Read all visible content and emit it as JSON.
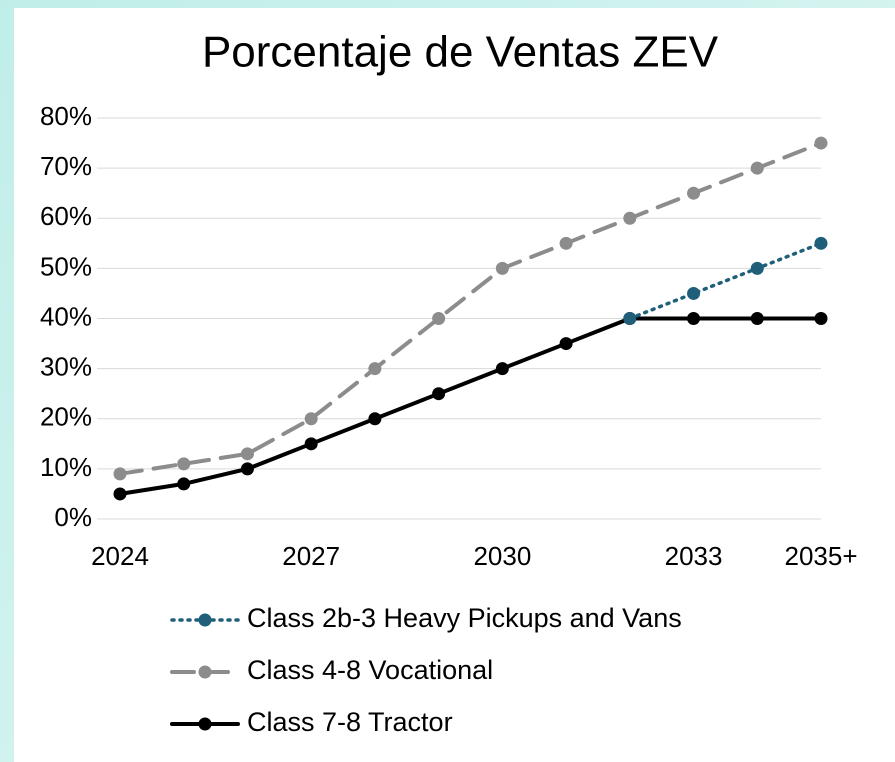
{
  "chart_data": {
    "type": "line",
    "title": "Porcentaje de Ventas ZEV",
    "categories": [
      "2024",
      null,
      null,
      "2027",
      null,
      null,
      "2030",
      null,
      null,
      "2033",
      null,
      "2035+"
    ],
    "series": [
      {
        "name": "Class 2b-3 Heavy Pickups and Vans",
        "color": "#1f5f7a",
        "line_style": "dotted",
        "values": [
          null,
          null,
          null,
          null,
          null,
          null,
          null,
          null,
          40,
          45,
          50,
          55
        ]
      },
      {
        "name": "Class 4-8 Vocational",
        "color": "#8c8c8c",
        "line_style": "dashed",
        "values": [
          9,
          11,
          13,
          20,
          30,
          40,
          50,
          55,
          60,
          65,
          70,
          75
        ]
      },
      {
        "name": "Class 7-8 Tractor",
        "color": "#000000",
        "line_style": "solid",
        "values": [
          5,
          7,
          10,
          15,
          20,
          25,
          30,
          35,
          40,
          40,
          40,
          40
        ]
      }
    ],
    "ylim": [
      0,
      80
    ],
    "yticks": [
      {
        "value": 0,
        "label": "0%"
      },
      {
        "value": 10,
        "label": "10%"
      },
      {
        "value": 20,
        "label": "20%"
      },
      {
        "value": 30,
        "label": "30%"
      },
      {
        "value": 40,
        "label": "40%"
      },
      {
        "value": 50,
        "label": "50%"
      },
      {
        "value": 60,
        "label": "60%"
      },
      {
        "value": 70,
        "label": "70%"
      },
      {
        "value": 80,
        "label": "80%"
      }
    ],
    "grid": true
  }
}
